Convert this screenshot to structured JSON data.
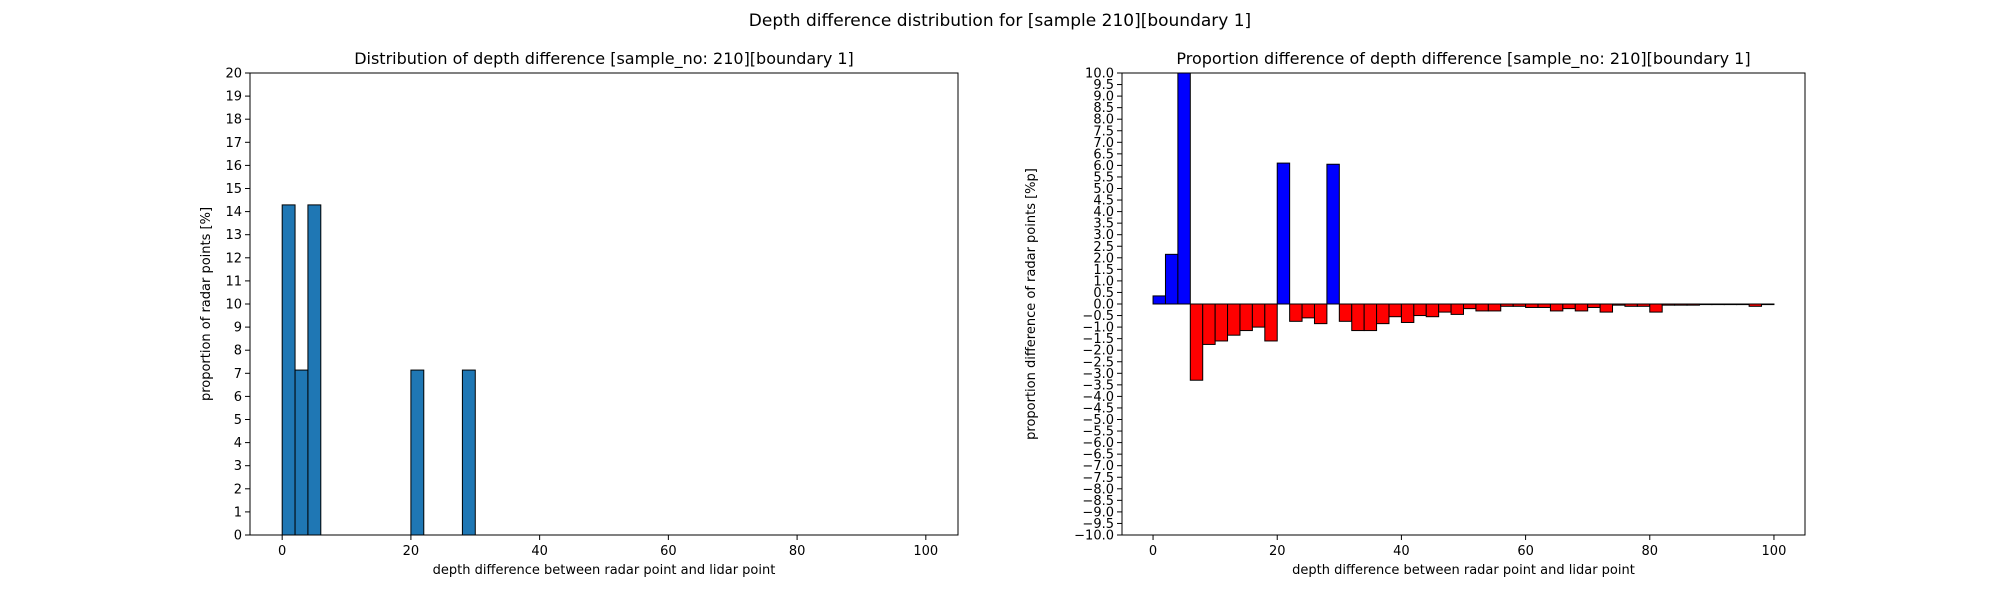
{
  "figure": {
    "suptitle": "Depth difference distribution for [sample 210][boundary 1]"
  },
  "chart_data": [
    {
      "type": "bar",
      "title": "Distribution of depth difference [sample_no: 210][boundary 1]",
      "xlabel": "depth difference between radar point and lidar point",
      "ylabel": "proportion of radar points [%]",
      "xlim": [
        -5,
        105
      ],
      "ylim": [
        0,
        20
      ],
      "xticks": [
        0,
        20,
        40,
        60,
        80,
        100
      ],
      "yticks": [
        0,
        1,
        2,
        3,
        4,
        5,
        6,
        7,
        8,
        9,
        10,
        11,
        12,
        13,
        14,
        15,
        16,
        17,
        18,
        19,
        20
      ],
      "bin_width": 2,
      "bar_color": "#1f77b4",
      "edge_color": "#000000",
      "bins": [
        {
          "x0": 0,
          "value": 14.29
        },
        {
          "x0": 2,
          "value": 7.14
        },
        {
          "x0": 4,
          "value": 14.29
        },
        {
          "x0": 20,
          "value": 7.14
        },
        {
          "x0": 28,
          "value": 7.14
        }
      ]
    },
    {
      "type": "bar",
      "title": "Proportion difference of depth difference [sample_no: 210][boundary 1]",
      "xlabel": "depth difference between radar point and lidar point",
      "ylabel": "proportion difference of radar points [%p]",
      "xlim": [
        -5,
        105
      ],
      "ylim": [
        -10,
        10
      ],
      "xticks": [
        0,
        20,
        40,
        60,
        80,
        100
      ],
      "yticks": [
        -10.0,
        -9.5,
        -9.0,
        -8.5,
        -8.0,
        -7.5,
        -7.0,
        -6.5,
        -6.0,
        -5.5,
        -5.0,
        -4.5,
        -4.0,
        -3.5,
        -3.0,
        -2.5,
        -2.0,
        -1.5,
        -1.0,
        -0.5,
        0.0,
        0.5,
        1.0,
        1.5,
        2.0,
        2.5,
        3.0,
        3.5,
        4.0,
        4.5,
        5.0,
        5.5,
        6.0,
        6.5,
        7.0,
        7.5,
        8.0,
        8.5,
        9.0,
        9.5,
        10.0
      ],
      "bin_width": 2,
      "positive_color": "#0000ff",
      "negative_color": "#ff0000",
      "edge_color": "#000000",
      "bins": [
        {
          "x0": 0,
          "value": 0.35
        },
        {
          "x0": 2,
          "value": 2.15
        },
        {
          "x0": 4,
          "value": 10.0
        },
        {
          "x0": 6,
          "value": -3.3
        },
        {
          "x0": 8,
          "value": -1.75
        },
        {
          "x0": 10,
          "value": -1.6
        },
        {
          "x0": 12,
          "value": -1.35
        },
        {
          "x0": 14,
          "value": -1.15
        },
        {
          "x0": 16,
          "value": -1.0
        },
        {
          "x0": 18,
          "value": -1.6
        },
        {
          "x0": 20,
          "value": 6.1
        },
        {
          "x0": 22,
          "value": -0.75
        },
        {
          "x0": 24,
          "value": -0.6
        },
        {
          "x0": 26,
          "value": -0.85
        },
        {
          "x0": 28,
          "value": 6.05
        },
        {
          "x0": 30,
          "value": -0.75
        },
        {
          "x0": 32,
          "value": -1.15
        },
        {
          "x0": 34,
          "value": -1.15
        },
        {
          "x0": 36,
          "value": -0.85
        },
        {
          "x0": 38,
          "value": -0.55
        },
        {
          "x0": 40,
          "value": -0.8
        },
        {
          "x0": 42,
          "value": -0.5
        },
        {
          "x0": 44,
          "value": -0.55
        },
        {
          "x0": 46,
          "value": -0.35
        },
        {
          "x0": 48,
          "value": -0.45
        },
        {
          "x0": 50,
          "value": -0.2
        },
        {
          "x0": 52,
          "value": -0.3
        },
        {
          "x0": 54,
          "value": -0.3
        },
        {
          "x0": 56,
          "value": -0.1
        },
        {
          "x0": 58,
          "value": -0.1
        },
        {
          "x0": 60,
          "value": -0.15
        },
        {
          "x0": 62,
          "value": -0.15
        },
        {
          "x0": 64,
          "value": -0.3
        },
        {
          "x0": 66,
          "value": -0.2
        },
        {
          "x0": 68,
          "value": -0.3
        },
        {
          "x0": 70,
          "value": -0.15
        },
        {
          "x0": 72,
          "value": -0.35
        },
        {
          "x0": 74,
          "value": -0.05
        },
        {
          "x0": 76,
          "value": -0.1
        },
        {
          "x0": 78,
          "value": -0.1
        },
        {
          "x0": 80,
          "value": -0.35
        },
        {
          "x0": 82,
          "value": -0.05
        },
        {
          "x0": 84,
          "value": -0.05
        },
        {
          "x0": 86,
          "value": -0.05
        },
        {
          "x0": 88,
          "value": -0.02
        },
        {
          "x0": 90,
          "value": -0.02
        },
        {
          "x0": 92,
          "value": -0.02
        },
        {
          "x0": 94,
          "value": -0.02
        },
        {
          "x0": 96,
          "value": -0.1
        },
        {
          "x0": 98,
          "value": -0.02
        }
      ]
    }
  ]
}
